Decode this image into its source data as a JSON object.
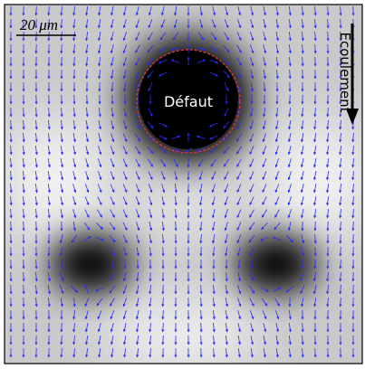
{
  "scale_bar": "20 μm",
  "defect_label": "Défaut",
  "flow_label": "Écoulement"
}
